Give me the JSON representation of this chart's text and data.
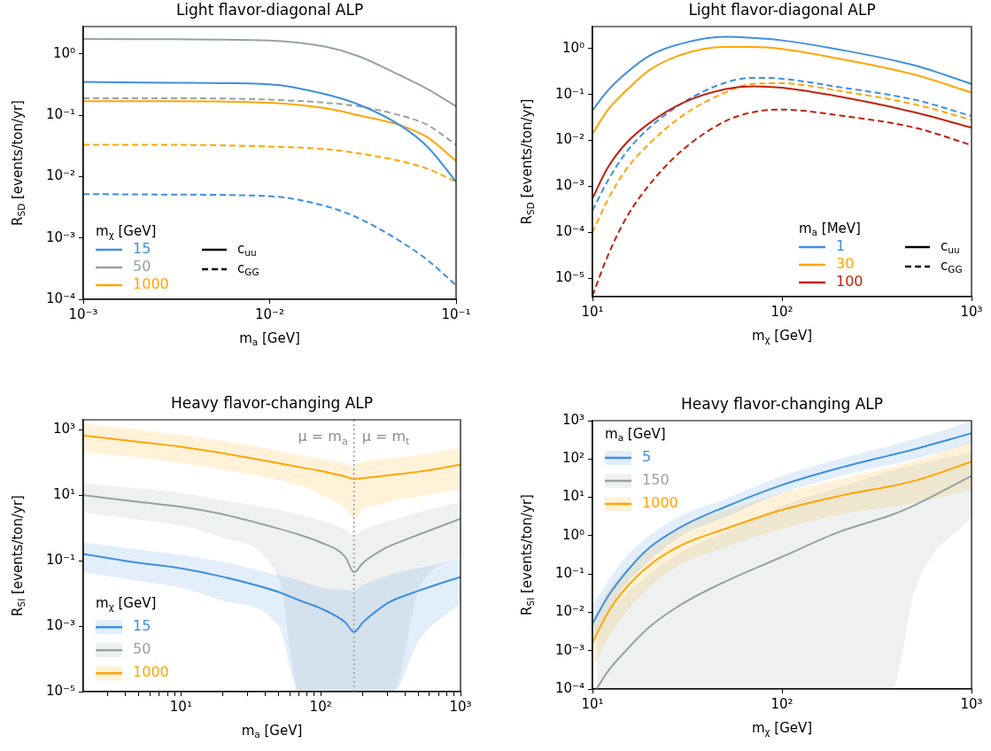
{
  "chart_data": [
    {
      "type": "line",
      "title": "Light flavor-diagonal ALP",
      "xlabel": "m$_{a}$ [GeV]",
      "ylabel": "R$_{SD}$ [events/ton/yr]",
      "log": "xy",
      "legend": "bottom left",
      "legend_title": "m$_{χ}$ [GeV]",
      "xlim": [
        0.001,
        0.1
      ],
      "xticks": [
        {
          "value": 0.001,
          "label": "10⁻³"
        },
        {
          "value": 0.01,
          "label": "10⁻²"
        },
        {
          "value": 0.1,
          "label": "10⁻¹"
        }
      ],
      "ylim": [
        0.0001,
        2.8
      ],
      "yticks": [
        {
          "value": 0.0001,
          "label": "10⁻⁴"
        },
        {
          "value": 0.001,
          "label": "10⁻³"
        },
        {
          "value": 0.01,
          "label": "10⁻²"
        },
        {
          "value": 0.1,
          "label": "10⁻¹"
        },
        {
          "value": 1,
          "label": "10⁰"
        }
      ],
      "x": [
        0.001,
        0.003,
        0.01,
        0.02,
        0.03,
        0.05,
        0.07,
        0.1
      ],
      "annotations": [
        "c$_{uu}$",
        "c$_{GG}$"
      ],
      "series": [
        {
          "name": "15",
          "color": "#3f8fde",
          "line_style": "solid",
          "values": [
            0.35,
            0.34,
            0.32,
            0.22,
            0.15,
            0.069,
            0.031,
            0.0083
          ]
        },
        {
          "name": "50",
          "color": "#95a3a0",
          "line_style": "solid",
          "values": [
            1.76,
            1.74,
            1.66,
            1.31,
            0.92,
            0.45,
            0.27,
            0.14
          ]
        },
        {
          "name": "1000",
          "color": "#ffa500",
          "line_style": "solid",
          "values": [
            0.17,
            0.17,
            0.16,
            0.13,
            0.1,
            0.069,
            0.044,
            0.018
          ]
        },
        {
          "color": "#3f8fde",
          "line_style": "dashed",
          "values": [
            0.0052,
            0.0051,
            0.0048,
            0.0033,
            0.0021,
            0.00089,
            0.00044,
            0.00017
          ]
        },
        {
          "color": "#95a3a0",
          "line_style": "dashed",
          "values": [
            0.19,
            0.19,
            0.18,
            0.16,
            0.14,
            0.1,
            0.07,
            0.033
          ]
        },
        {
          "color": "#ffa500",
          "line_style": "dashed",
          "values": [
            0.033,
            0.033,
            0.031,
            0.028,
            0.024,
            0.018,
            0.0135,
            0.0083
          ]
        }
      ]
    },
    {
      "type": "line",
      "title": "Light flavor-diagonal ALP",
      "xlabel": "m$_{χ}$ [GeV]",
      "ylabel": "R$_{SD}$ [events/ton/yr]",
      "log": "xy",
      "legend": "bottom right",
      "legend_title": "m$_{a}$ [MeV]",
      "xlim": [
        10,
        1000
      ],
      "xticks": [
        {
          "value": 10,
          "label": "10¹"
        },
        {
          "value": 100,
          "label": "10²"
        },
        {
          "value": 1000,
          "label": "10³"
        }
      ],
      "ylim": [
        4e-06,
        3
      ],
      "yticks": [
        {
          "value": 1e-05,
          "label": "10⁻⁵"
        },
        {
          "value": 0.0001,
          "label": "10⁻⁴"
        },
        {
          "value": 0.001,
          "label": "10⁻³"
        },
        {
          "value": 0.01,
          "label": "10⁻²"
        },
        {
          "value": 0.1,
          "label": "10⁻¹"
        },
        {
          "value": 1,
          "label": "10⁰"
        }
      ],
      "x": [
        10,
        12,
        15,
        20,
        30,
        50,
        70,
        100,
        200,
        500,
        1000
      ],
      "annotations": [
        "c$_{uu}$",
        "c$_{GG}$"
      ],
      "series": [
        {
          "name": "1",
          "color": "#3f8fde",
          "line_style": "solid",
          "values": [
            0.045,
            0.12,
            0.29,
            0.7,
            1.3,
            1.8,
            1.7,
            1.5,
            0.95,
            0.43,
            0.17
          ]
        },
        {
          "name": "30",
          "color": "#ffa500",
          "line_style": "solid",
          "values": [
            0.014,
            0.045,
            0.12,
            0.34,
            0.75,
            1.08,
            1.08,
            0.98,
            0.6,
            0.27,
            0.11
          ]
        },
        {
          "name": "100",
          "color": "#c0220b",
          "line_style": "solid",
          "values": [
            0.00055,
            0.0025,
            0.0086,
            0.024,
            0.066,
            0.13,
            0.15,
            0.14,
            0.09,
            0.041,
            0.019
          ]
        },
        {
          "color": "#3f8fde",
          "line_style": "dashed",
          "values": [
            0.0003,
            0.0013,
            0.0054,
            0.019,
            0.066,
            0.18,
            0.23,
            0.22,
            0.145,
            0.077,
            0.034
          ]
        },
        {
          "color": "#ffa500",
          "line_style": "dashed",
          "values": [
            0.0001,
            0.0005,
            0.0023,
            0.0086,
            0.035,
            0.11,
            0.17,
            0.175,
            0.12,
            0.061,
            0.028
          ]
        },
        {
          "color": "#c0220b",
          "line_style": "dashed",
          "values": [
            4.2e-06,
            3e-05,
            0.0002,
            0.0011,
            0.0063,
            0.026,
            0.041,
            0.047,
            0.035,
            0.019,
            0.0079
          ]
        }
      ]
    },
    {
      "type": "line",
      "title": "Heavy flavor-changing ALP",
      "xlabel": "m$_{a}$ [GeV]",
      "ylabel": "R$_{SI}$ [events/ton/yr]",
      "log": "xy",
      "legend": "bottom left",
      "legend_title": "m$_{χ}$ [GeV]",
      "xlim": [
        2,
        1000
      ],
      "xticks": [
        {
          "value": 3,
          "label": null
        },
        {
          "value": 4,
          "label": null
        },
        {
          "value": 5,
          "label": null
        },
        {
          "value": 6,
          "label": null
        },
        {
          "value": 7,
          "label": null
        },
        {
          "value": 8,
          "label": null
        },
        {
          "value": 9,
          "label": null
        },
        {
          "value": 10,
          "label": "10¹"
        },
        {
          "value": 20,
          "label": null
        },
        {
          "value": 30,
          "label": null
        },
        {
          "value": 40,
          "label": null
        },
        {
          "value": 50,
          "label": null
        },
        {
          "value": 60,
          "label": null
        },
        {
          "value": 70,
          "label": null
        },
        {
          "value": 80,
          "label": null
        },
        {
          "value": 90,
          "label": null
        },
        {
          "value": 100,
          "label": "10²"
        },
        {
          "value": 200,
          "label": null
        },
        {
          "value": 300,
          "label": null
        },
        {
          "value": 400,
          "label": null
        },
        {
          "value": 500,
          "label": null
        },
        {
          "value": 600,
          "label": null
        },
        {
          "value": 700,
          "label": null
        },
        {
          "value": 800,
          "label": null
        },
        {
          "value": 900,
          "label": null
        },
        {
          "value": 1000,
          "label": "10³"
        }
      ],
      "ylim": [
        1e-05,
        2000
      ],
      "yticks": [
        {
          "value": 1e-05,
          "label": "10⁻⁵"
        },
        {
          "value": 0.001,
          "label": "10⁻³"
        },
        {
          "value": 0.1,
          "label": "10⁻¹"
        },
        {
          "value": 10,
          "label": "10¹"
        },
        {
          "value": 1000,
          "label": "10³"
        }
      ],
      "x": [
        2,
        5,
        10,
        20,
        50,
        70,
        100,
        150,
        173,
        200,
        300,
        330,
        500,
        1000
      ],
      "ref_lines": [
        {
          "axis": "x",
          "value": 173,
          "color": "#aaaaaa",
          "line_style": "dotted"
        }
      ],
      "annotations": [
        "μ = m$_{a}$",
        "μ = m$_{t}$"
      ],
      "series": [
        {
          "name": "15",
          "color": "#3f8fde",
          "values": [
            0.16,
            0.086,
            0.058,
            0.032,
            0.011,
            0.0062,
            0.0035,
            0.0013,
            0.00066,
            0.0013,
            0.005,
            0.0062,
            0.012,
            0.032
          ],
          "lower": [
            0.044,
            0.024,
            0.015,
            0.006,
            0.001,
            1e-05,
            1e-05,
            1e-05,
            1e-05,
            1e-05,
            1e-05,
            1e-05,
            0.00035,
            0.005
          ],
          "upper": [
            0.36,
            0.22,
            0.15,
            0.09,
            0.036,
            0.025,
            0.015,
            0.013,
            0.012,
            0.018,
            0.035,
            0.04,
            0.06,
            0.107
          ]
        },
        {
          "name": "50",
          "color": "#95a3a0",
          "values": [
            10,
            6.2,
            4.4,
            2.6,
            0.95,
            0.62,
            0.36,
            0.13,
            0.044,
            0.085,
            0.26,
            0.31,
            0.62,
            1.9
          ],
          "lower": [
            2.9,
            1.8,
            1.2,
            0.5,
            0.029,
            1e-05,
            1e-05,
            1e-05,
            1e-05,
            1e-05,
            1e-05,
            1e-05,
            0.012,
            0.13
          ],
          "upper": [
            23,
            16,
            12,
            7,
            3.6,
            2.5,
            1.65,
            0.9,
            0.62,
            0.86,
            1.6,
            1.8,
            3,
            6.2
          ]
        },
        {
          "name": "1000",
          "color": "#ffa500",
          "values": [
            660,
            420,
            300,
            190,
            95,
            72,
            55,
            37,
            31,
            33,
            40,
            42,
            52,
            85
          ],
          "lower": [
            205,
            140,
            95,
            60,
            29,
            20,
            10.6,
            4,
            2,
            3.6,
            6,
            7,
            9,
            15
          ],
          "upper": [
            1500,
            1000,
            690,
            450,
            230,
            170,
            130,
            95,
            77,
            107,
            130,
            135,
            170,
            270
          ]
        }
      ]
    },
    {
      "type": "line",
      "title": "Heavy flavor-changing ALP",
      "xlabel": "m$_{χ}$ [GeV]",
      "ylabel": "R$_{SI}$ [events/ton/yr]",
      "log": "xy",
      "legend": "top left",
      "legend_title": "m$_{a}$ [GeV]",
      "xlim": [
        10,
        1000
      ],
      "xticks": [
        {
          "value": 10,
          "label": "10¹"
        },
        {
          "value": 100,
          "label": "10²"
        },
        {
          "value": 1000,
          "label": "10³"
        }
      ],
      "ylim": [
        0.0001,
        1000
      ],
      "yticks": [
        {
          "value": 0.0001,
          "label": "10⁻⁴"
        },
        {
          "value": 0.001,
          "label": "10⁻³"
        },
        {
          "value": 0.01,
          "label": "10⁻²"
        },
        {
          "value": 0.1,
          "label": "10⁻¹"
        },
        {
          "value": 1,
          "label": "10⁰"
        },
        {
          "value": 10,
          "label": "10¹"
        },
        {
          "value": 100,
          "label": "10²"
        },
        {
          "value": 1000,
          "label": "10³"
        }
      ],
      "x": [
        10,
        12,
        15,
        20,
        30,
        50,
        100,
        200,
        500,
        1000
      ],
      "series": [
        {
          "name": "5",
          "color": "#3f8fde",
          "values": [
            0.005,
            0.025,
            0.11,
            0.49,
            1.8,
            5.6,
            21,
            58,
            180,
            470
          ],
          "lower": [
            0.0018,
            0.01,
            0.052,
            0.22,
            1.05,
            3,
            13,
            35,
            100,
            260
          ],
          "upper": [
            0.016,
            0.06,
            0.28,
            1.0,
            3.5,
            9,
            36,
            100,
            330,
            960
          ]
        },
        {
          "name": "150",
          "color": "#95a3a0",
          "x": [
            10.5,
            12,
            15,
            20,
            30,
            50,
            100,
            200,
            380,
            500,
            1000
          ],
          "values": [
            0.0001,
            0.00028,
            0.001,
            0.0042,
            0.017,
            0.063,
            0.28,
            1.25,
            3.5,
            6.2,
            36
          ],
          "lower": [
            0.0001,
            0.0001,
            0.0001,
            0.0001,
            0.0001,
            0.0001,
            0.0001,
            0.0001,
            0.0001,
            0.035,
            3.2
          ],
          "upper": [
            0.002,
            0.008,
            0.03,
            0.1,
            0.4,
            1.2,
            6,
            18,
            50,
            70,
            150
          ]
        },
        {
          "name": "1000",
          "color": "#ffa500",
          "values": [
            0.0016,
            0.0095,
            0.043,
            0.17,
            0.59,
            1.5,
            4.7,
            10.8,
            27,
            85
          ],
          "lower": [
            0.00033,
            0.002,
            0.01,
            0.045,
            0.19,
            0.5,
            1.5,
            3.5,
            7,
            16
          ],
          "upper": [
            0.0066,
            0.035,
            0.13,
            0.5,
            1.8,
            4.5,
            13,
            30,
            90,
            290
          ]
        }
      ]
    }
  ]
}
